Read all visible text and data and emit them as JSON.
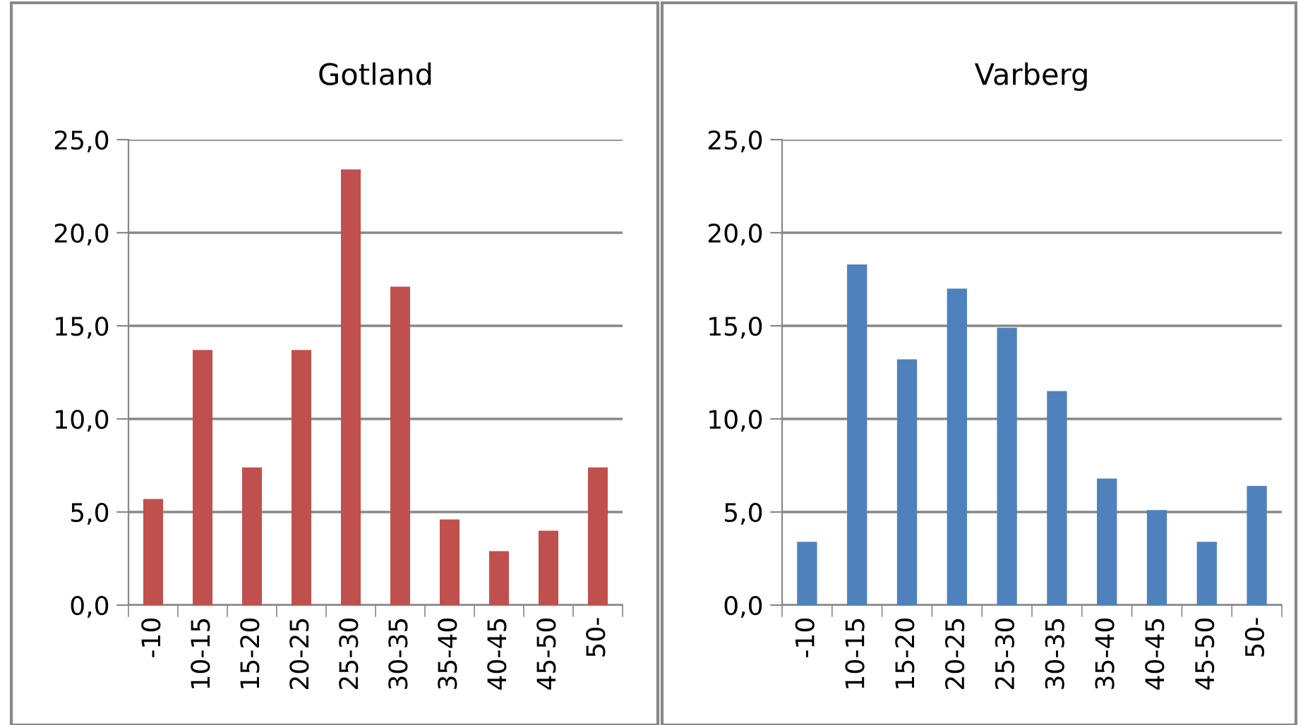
{
  "chart_data": [
    {
      "type": "bar",
      "title": "Gotland",
      "categories": [
        "-10",
        "10-15",
        "15-20",
        "20-25",
        "25-30",
        "30-35",
        "35-40",
        "40-45",
        "45-50",
        "50-"
      ],
      "values": [
        5.7,
        13.7,
        7.4,
        13.7,
        23.4,
        17.1,
        4.6,
        2.9,
        4.0,
        7.4
      ],
      "color": "#c0504d",
      "ylim": [
        0,
        25
      ],
      "yticks": [
        {
          "value": 0,
          "label": "0,0"
        },
        {
          "value": 5,
          "label": "5,0"
        },
        {
          "value": 10,
          "label": "10,0"
        },
        {
          "value": 15,
          "label": "15,0"
        },
        {
          "value": 20,
          "label": "20,0"
        },
        {
          "value": 25,
          "label": "25,0"
        }
      ],
      "grid": "y",
      "legend": false
    },
    {
      "type": "bar",
      "title": "Varberg",
      "categories": [
        "-10",
        "10-15",
        "15-20",
        "20-25",
        "25-30",
        "30-35",
        "35-40",
        "40-45",
        "45-50",
        "50-"
      ],
      "values": [
        3.4,
        18.3,
        13.2,
        17.0,
        14.9,
        11.5,
        6.8,
        5.1,
        3.4,
        6.4
      ],
      "color": "#4f81bd",
      "ylim": [
        0,
        25
      ],
      "yticks": [
        {
          "value": 0,
          "label": "0,0"
        },
        {
          "value": 5,
          "label": "5,0"
        },
        {
          "value": 10,
          "label": "10,0"
        },
        {
          "value": 15,
          "label": "15,0"
        },
        {
          "value": 20,
          "label": "20,0"
        },
        {
          "value": 25,
          "label": "25,0"
        }
      ],
      "grid": "y",
      "legend": false
    }
  ]
}
